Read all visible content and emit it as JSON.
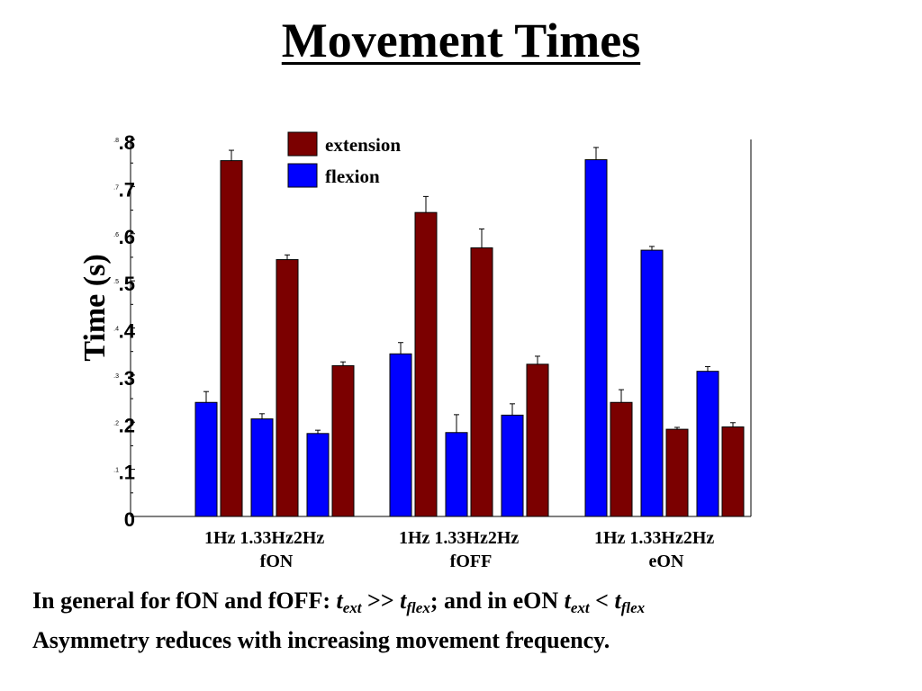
{
  "title": "Movement Times",
  "chart_data": {
    "type": "bar",
    "ylabel": "Time (s)",
    "ylim": [
      0,
      0.8
    ],
    "yticks": [
      {
        "value": 0,
        "label": "0"
      },
      {
        "value": 0.1,
        "label": ".1"
      },
      {
        "value": 0.2,
        "label": ".2"
      },
      {
        "value": 0.3,
        "label": ".3"
      },
      {
        "value": 0.4,
        "label": ".4"
      },
      {
        "value": 0.5,
        "label": ".5"
      },
      {
        "value": 0.6,
        "label": ".6"
      },
      {
        "value": 0.7,
        "label": ".7"
      },
      {
        "value": 0.8,
        "label": ".8"
      }
    ],
    "legend_position": "top-center",
    "groups": [
      "fON",
      "fOFF",
      "eON"
    ],
    "frequencies": [
      "1Hz",
      "1.33Hz",
      "2Hz"
    ],
    "frequency_tick_text": "1Hz 1.33Hz2Hz",
    "series": [
      {
        "name": "extension",
        "color": "#7b0000",
        "values": [
          [
            0.755,
            0.545,
            0.32
          ],
          [
            0.645,
            0.57,
            0.323
          ],
          [
            0.242,
            0.185,
            0.19
          ]
        ],
        "errors": [
          [
            0.022,
            0.01,
            0.008
          ],
          [
            0.034,
            0.04,
            0.017
          ],
          [
            0.027,
            0.004,
            0.009
          ]
        ]
      },
      {
        "name": "flexion",
        "color": "#0000ff",
        "values": [
          [
            0.242,
            0.207,
            0.176
          ],
          [
            0.345,
            0.178,
            0.215
          ],
          [
            0.757,
            0.565,
            0.308
          ]
        ],
        "errors": [
          [
            0.023,
            0.011,
            0.007
          ],
          [
            0.024,
            0.038,
            0.024
          ],
          [
            0.026,
            0.008,
            0.01
          ]
        ]
      }
    ]
  },
  "caption": {
    "l1_a": "In general for fON and fOFF: ",
    "t": "t",
    "ext": "ext",
    "flex": "flex",
    "gg": " >> ",
    "l1_b": "; and in eON ",
    "lt": " < ",
    "line2": "Asymmetry reduces with increasing movement frequency."
  }
}
